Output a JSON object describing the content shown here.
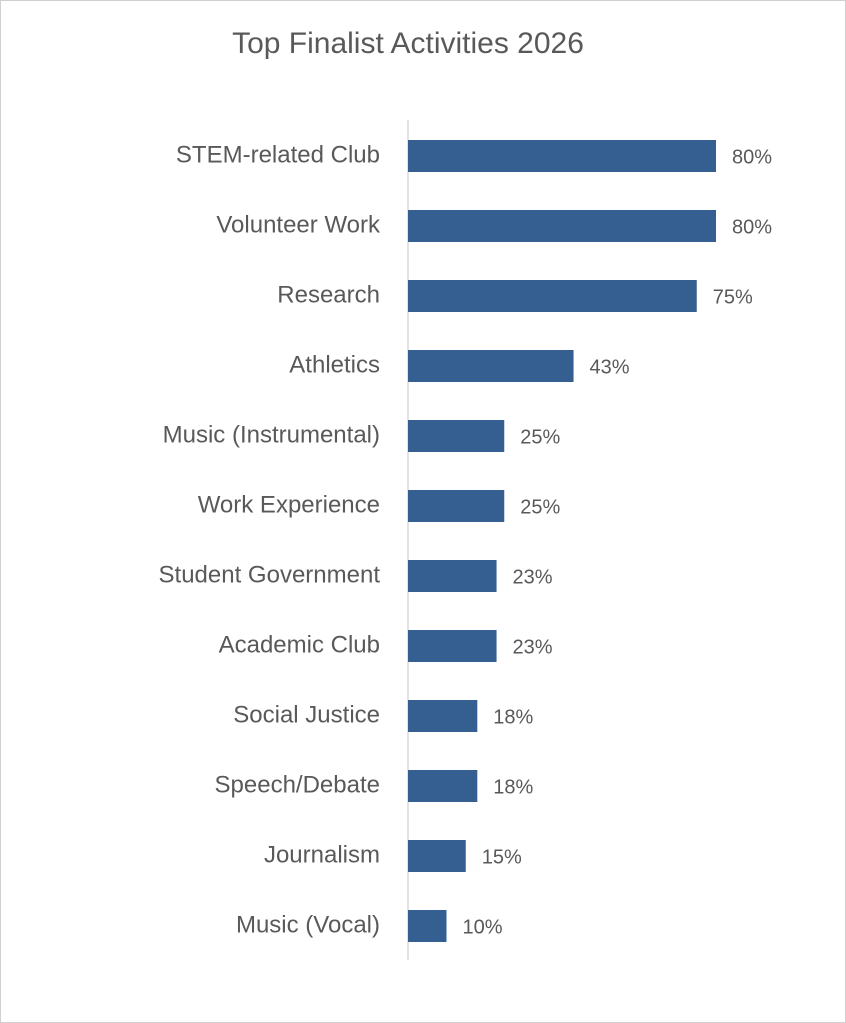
{
  "chart_data": {
    "type": "hbar",
    "title": "Top Finalist Activities 2026",
    "categories": [
      "STEM-related Club",
      "Volunteer Work",
      "Research",
      "Athletics",
      "Music (Instrumental)",
      "Work Experience",
      "Student Government",
      "Academic Club",
      "Social Justice",
      "Speech/Debate",
      "Journalism",
      "Music (Vocal)"
    ],
    "values": [
      80,
      80,
      75,
      43,
      25,
      25,
      23,
      23,
      18,
      18,
      15,
      10
    ],
    "value_labels": [
      "80%",
      "80%",
      "75%",
      "43%",
      "25%",
      "25%",
      "23%",
      "23%",
      "18%",
      "18%",
      "15%",
      "10%"
    ],
    "color": "#365f91",
    "xlim": [
      0,
      100
    ]
  }
}
